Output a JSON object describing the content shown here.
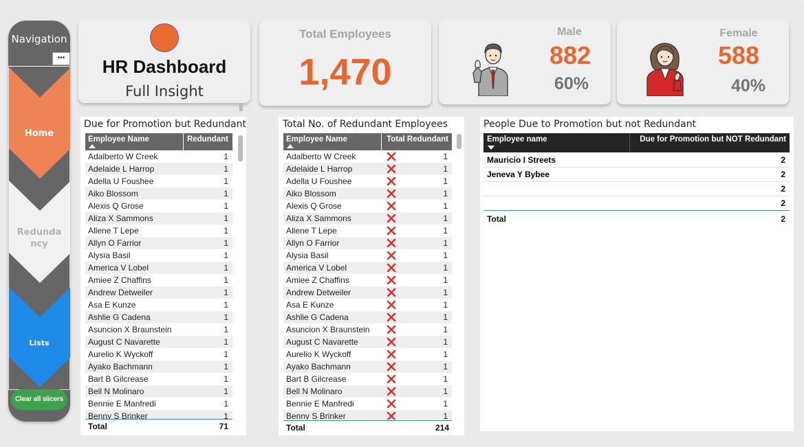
{
  "navigation": {
    "title": "Navigation",
    "more_label": "•••",
    "items": [
      {
        "label": "Home"
      },
      {
        "label": "Redunda ncy"
      },
      {
        "label": "Lists"
      }
    ],
    "clear_button": "Clear all slicers"
  },
  "header": {
    "title": "HR Dashboard",
    "subtitle": "Full Insight"
  },
  "kpis": {
    "total": {
      "label": "Total Employees",
      "value": "1,470"
    },
    "male": {
      "label": "Male",
      "value": "882",
      "pct": "60%"
    },
    "female": {
      "label": "Female",
      "value": "588",
      "pct": "40%"
    }
  },
  "colors": {
    "accent": "#e8662f",
    "nav_home": "#ee8456",
    "nav_lists": "#1f8ae8",
    "clear": "#3fa14d"
  },
  "names": [
    "Adalberto W Creek",
    "Adelaide L Harrop",
    "Adella U Foushee",
    "Aiko Blossom",
    "Alexis Q Grose",
    "Aliza X Sammons",
    "Allene T Lepe",
    "Allyn O Farrior",
    "Alysia Basil",
    "America V Lobel",
    "Amiee Z Chaffins",
    "Andrew Detweiler",
    "Asa E Kunze",
    "Ashlie G Cadena",
    "Asuncion X Braunstein",
    "August C Navarette",
    "Aurelio K Wyckoff",
    "Ayako Bachmann",
    "Bart B Gilcrease",
    "Bell N Molinaro",
    "Bennie E Manfredi",
    "Benny S Brinker"
  ],
  "table1": {
    "title": "Due for Promotion but Redundant",
    "col_name": "Employee Name",
    "col_value": "Redundant",
    "row_value": "1",
    "total_label": "Total",
    "total_value": "71"
  },
  "table2": {
    "title": "Total No. of Redundant Employees",
    "col_name": "Employee Name",
    "col_value": "Total Redundant",
    "row_value": "1",
    "icon": "red-x-icon",
    "total_label": "Total",
    "total_value": "214"
  },
  "table3": {
    "title": "People Due to Promotion but not Redundant",
    "col_name": "Employee name",
    "col_value": "Due for Promotion but NOT Redundant",
    "rows": [
      {
        "name": "Mauricio I Streets",
        "value": "2"
      },
      {
        "name": "Jeneva Y Bybee",
        "value": "2"
      },
      {
        "name": "",
        "value": "2"
      },
      {
        "name": "",
        "value": "2"
      }
    ],
    "total_label": "Total",
    "total_value": "2"
  }
}
